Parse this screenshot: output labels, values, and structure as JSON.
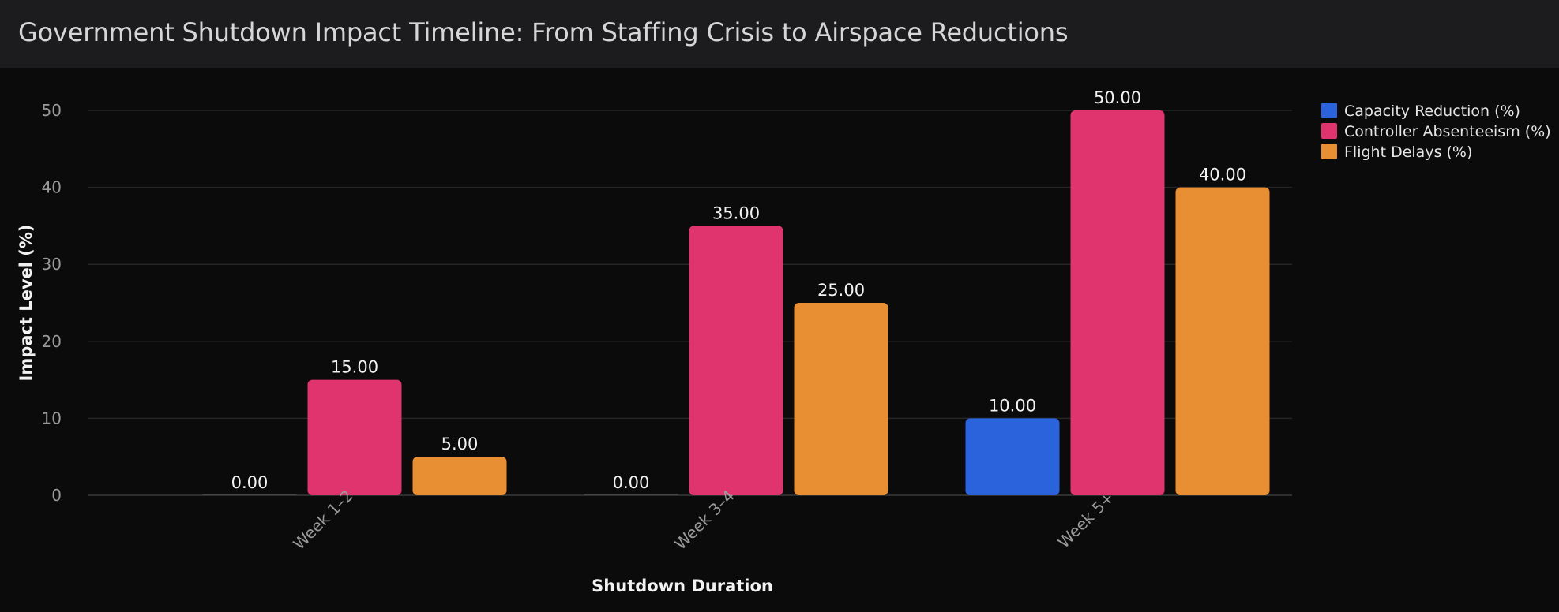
{
  "header": {
    "title": "Government Shutdown Impact Timeline: From Staffing Crisis to Airspace Reductions"
  },
  "chart_data": {
    "type": "bar",
    "title": "Government Shutdown Impact Timeline: From Staffing Crisis to Airspace Reductions",
    "xlabel": "Shutdown Duration",
    "ylabel": "Impact Level (%)",
    "categories": [
      "Week 1–2",
      "Week 3–4",
      "Week 5+"
    ],
    "ylim": [
      0,
      50
    ],
    "yticks": [
      0,
      10,
      20,
      30,
      40,
      50
    ],
    "grid": true,
    "legend_position": "top-right",
    "series": [
      {
        "name": "Capacity Reduction (%)",
        "color": "#2a63dc",
        "values": [
          0,
          0,
          10
        ],
        "labels": [
          "0.00",
          "0.00",
          "10.00"
        ]
      },
      {
        "name": "Controller Absenteeism (%)",
        "color": "#e0346f",
        "values": [
          15,
          35,
          50
        ],
        "labels": [
          "15.00",
          "35.00",
          "50.00"
        ]
      },
      {
        "name": "Flight Delays (%)",
        "color": "#e88e33",
        "values": [
          5,
          25,
          40
        ],
        "labels": [
          "5.00",
          "25.00",
          "40.00"
        ]
      }
    ]
  }
}
